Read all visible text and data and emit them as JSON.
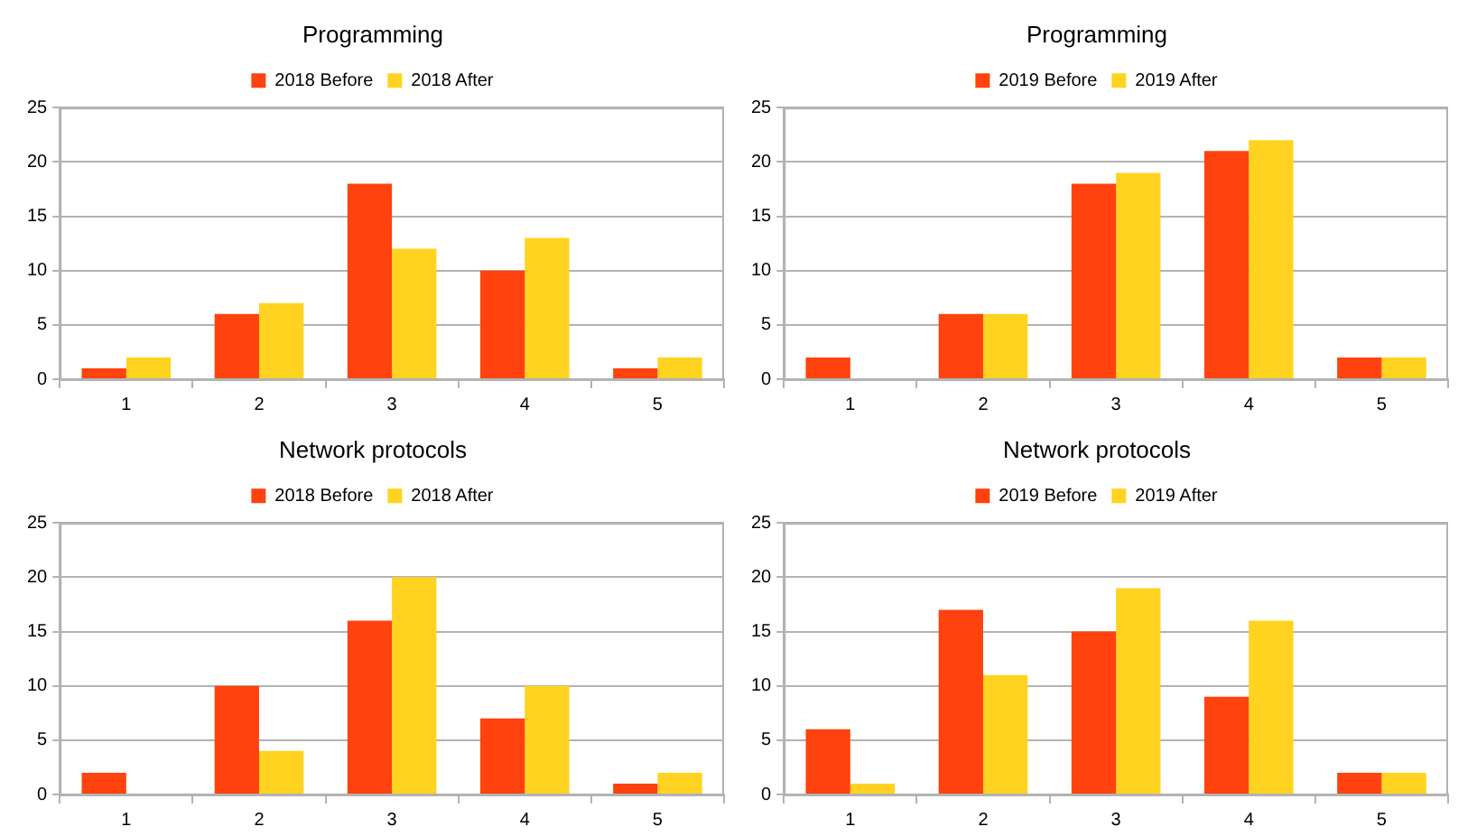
{
  "chart_data": [
    {
      "type": "bar",
      "title": "Programming",
      "categories": [
        "1",
        "2",
        "3",
        "4",
        "5"
      ],
      "series": [
        {
          "name": "2018 Before",
          "color": "#ff420e",
          "values": [
            1,
            6,
            18,
            10,
            1
          ]
        },
        {
          "name": "2018 After",
          "color": "#ffd320",
          "values": [
            2,
            7,
            12,
            13,
            2
          ]
        }
      ],
      "ylim": [
        0,
        25
      ],
      "yticks": [
        0,
        5,
        10,
        15,
        20,
        25
      ],
      "grid": "y",
      "legend": "top"
    },
    {
      "type": "bar",
      "title": "Programming",
      "categories": [
        "1",
        "2",
        "3",
        "4",
        "5"
      ],
      "series": [
        {
          "name": "2019 Before",
          "color": "#ff420e",
          "values": [
            2,
            6,
            18,
            21,
            2
          ]
        },
        {
          "name": "2019 After",
          "color": "#ffd320",
          "values": [
            0,
            6,
            19,
            22,
            2
          ]
        }
      ],
      "ylim": [
        0,
        25
      ],
      "yticks": [
        0,
        5,
        10,
        15,
        20,
        25
      ],
      "grid": "y",
      "legend": "top"
    },
    {
      "type": "bar",
      "title": "Network protocols",
      "categories": [
        "1",
        "2",
        "3",
        "4",
        "5"
      ],
      "series": [
        {
          "name": "2018 Before",
          "color": "#ff420e",
          "values": [
            2,
            10,
            16,
            7,
            1
          ]
        },
        {
          "name": "2018 After",
          "color": "#ffd320",
          "values": [
            0,
            4,
            20,
            10,
            2
          ]
        }
      ],
      "ylim": [
        0,
        25
      ],
      "yticks": [
        0,
        5,
        10,
        15,
        20,
        25
      ],
      "grid": "y",
      "legend": "top"
    },
    {
      "type": "bar",
      "title": "Network protocols",
      "categories": [
        "1",
        "2",
        "3",
        "4",
        "5"
      ],
      "series": [
        {
          "name": "2019 Before",
          "color": "#ff420e",
          "values": [
            6,
            17,
            15,
            9,
            2
          ]
        },
        {
          "name": "2019 After",
          "color": "#ffd320",
          "values": [
            1,
            11,
            19,
            16,
            2
          ]
        }
      ],
      "ylim": [
        0,
        25
      ],
      "yticks": [
        0,
        5,
        10,
        15,
        20,
        25
      ],
      "grid": "y",
      "legend": "top"
    }
  ]
}
